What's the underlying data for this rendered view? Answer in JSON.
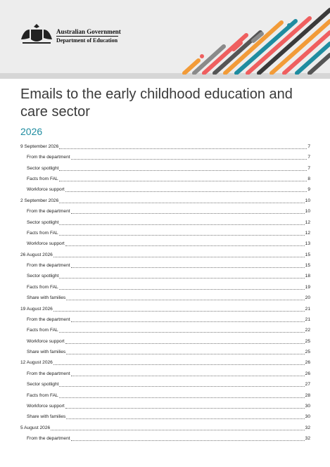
{
  "header": {
    "government": "Australian Government",
    "department": "Department of Education"
  },
  "title": "Emails to the early childhood education and care sector",
  "subtitle": "2026",
  "toc": [
    {
      "level": 1,
      "text": "9 September 2026",
      "page": "7"
    },
    {
      "level": 2,
      "text": "From the department",
      "page": "7"
    },
    {
      "level": 2,
      "text": "Sector spotlight",
      "page": "7"
    },
    {
      "level": 2,
      "text": "Facts from FAL",
      "page": "8"
    },
    {
      "level": 2,
      "text": "Workforce support",
      "page": "9"
    },
    {
      "level": 1,
      "text": "2 September 2026",
      "page": "10"
    },
    {
      "level": 2,
      "text": "From the department",
      "page": "10"
    },
    {
      "level": 2,
      "text": "Sector spotlight",
      "page": "12"
    },
    {
      "level": 2,
      "text": "Facts from FAL",
      "page": "12"
    },
    {
      "level": 2,
      "text": "Workforce support",
      "page": "13"
    },
    {
      "level": 1,
      "text": "26 August 2026",
      "page": "15"
    },
    {
      "level": 2,
      "text": "From the department",
      "page": "15"
    },
    {
      "level": 2,
      "text": "Sector spotlight",
      "page": "18"
    },
    {
      "level": 2,
      "text": "Facts from FAL",
      "page": "19"
    },
    {
      "level": 2,
      "text": "Share with families",
      "page": "20"
    },
    {
      "level": 1,
      "text": "19 August 2026",
      "page": "21"
    },
    {
      "level": 2,
      "text": "From the department",
      "page": "21"
    },
    {
      "level": 2,
      "text": "Facts from FAL",
      "page": "22"
    },
    {
      "level": 2,
      "text": "Workforce support",
      "page": "25"
    },
    {
      "level": 2,
      "text": "Share with families",
      "page": "25"
    },
    {
      "level": 1,
      "text": "12 August 2026",
      "page": "26"
    },
    {
      "level": 2,
      "text": "From the department",
      "page": "26"
    },
    {
      "level": 2,
      "text": "Sector spotlight",
      "page": "27"
    },
    {
      "level": 2,
      "text": "Facts from FAL",
      "page": "28"
    },
    {
      "level": 2,
      "text": "Workforce support",
      "page": "30"
    },
    {
      "level": 2,
      "text": "Share with families",
      "page": "30"
    },
    {
      "level": 1,
      "text": "5 August 2026",
      "page": "32"
    },
    {
      "level": 2,
      "text": "From the department",
      "page": "32"
    }
  ]
}
